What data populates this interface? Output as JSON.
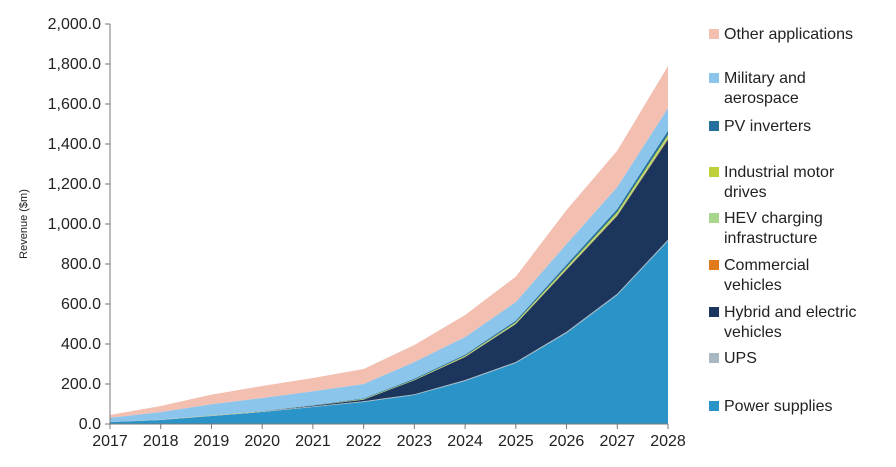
{
  "chart_data": {
    "type": "area",
    "stacked": true,
    "ylabel": "Revenue ($m)",
    "xlabel": "",
    "title": "",
    "ylim": [
      0,
      2000
    ],
    "yticks": [
      "0.0",
      "200.0",
      "400.0",
      "600.0",
      "800.0",
      "1,000.0",
      "1,200.0",
      "1,400.0",
      "1,600.0",
      "1,800.0",
      "2,000.0"
    ],
    "x": [
      "2017",
      "2018",
      "2019",
      "2020",
      "2021",
      "2022",
      "2023",
      "2024",
      "2025",
      "2026",
      "2027",
      "2028"
    ],
    "grid": false,
    "legend_position": "right",
    "series": [
      {
        "name": "Power supplies",
        "color": "#2a93c8",
        "values": [
          10,
          20,
          40,
          60,
          85,
          110,
          145,
          215,
          305,
          455,
          645,
          915
        ]
      },
      {
        "name": "UPS",
        "color": "#a8b8c2",
        "values": [
          1,
          2,
          2,
          3,
          3,
          4,
          4,
          5,
          5,
          6,
          6,
          7
        ]
      },
      {
        "name": "Hybrid and electric vehicles",
        "color": "#1b355c",
        "values": [
          0,
          0,
          0,
          0,
          3,
          8,
          70,
          115,
          190,
          310,
          390,
          500
        ]
      },
      {
        "name": "Commercial vehicles",
        "color": "#e07a1a",
        "values": [
          0,
          0,
          0,
          0,
          0,
          0,
          0,
          1,
          1,
          2,
          3,
          4
        ]
      },
      {
        "name": "HEV charging infrastructure",
        "color": "#a8d68a",
        "values": [
          0,
          0,
          0,
          0,
          0,
          1,
          1,
          2,
          4,
          6,
          8,
          10
        ]
      },
      {
        "name": "Industrial motor drives",
        "color": "#bfcf38",
        "values": [
          0,
          0,
          1,
          1,
          1,
          2,
          2,
          3,
          4,
          6,
          8,
          10
        ]
      },
      {
        "name": "PV inverters",
        "color": "#24709c",
        "values": [
          0,
          0,
          1,
          1,
          2,
          3,
          5,
          6,
          8,
          12,
          15,
          20
        ]
      },
      {
        "name": "Military and aerospace",
        "color": "#8cc5ec",
        "values": [
          20,
          38,
          55,
          65,
          70,
          72,
          83,
          88,
          93,
          103,
          110,
          114
        ]
      },
      {
        "name": "Other applications",
        "color": "#f2bfb0",
        "values": [
          14,
          30,
          48,
          60,
          66,
          75,
          85,
          110,
          127,
          170,
          182,
          210
        ]
      }
    ],
    "legend": [
      {
        "label": "Other applications",
        "color": "#f2bfb0"
      },
      {
        "label": "Military and aerospace",
        "color": "#8cc5ec"
      },
      {
        "label": "PV inverters",
        "color": "#24709c"
      },
      {
        "label": "Industrial motor drives",
        "color": "#bfcf38"
      },
      {
        "label": "HEV charging infrastructure",
        "color": "#a8d68a"
      },
      {
        "label": "Commercial vehicles",
        "color": "#e07a1a"
      },
      {
        "label": "Hybrid and electric vehicles",
        "color": "#1b355c"
      },
      {
        "label": "UPS",
        "color": "#a8b8c2"
      },
      {
        "label": "Power supplies",
        "color": "#2a93c8"
      }
    ]
  }
}
